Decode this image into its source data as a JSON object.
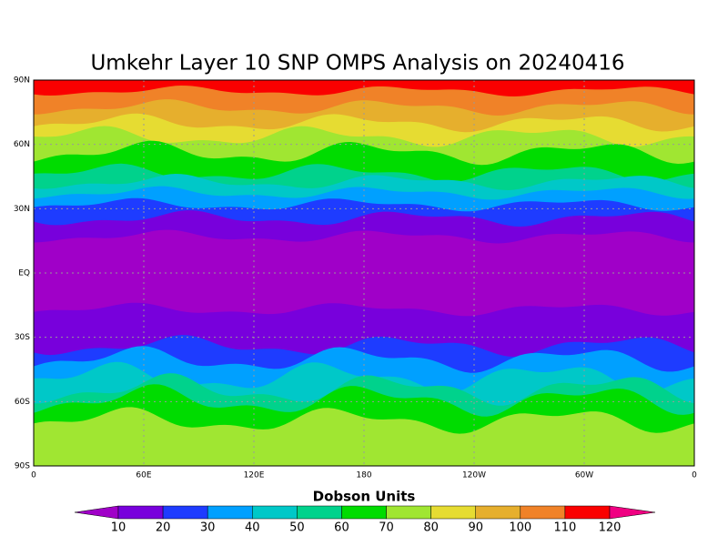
{
  "title": "Umkehr Layer 10 SNP OMPS Analysis on 20240416",
  "map": {
    "lat_labels": [
      "90N",
      "60N",
      "30N",
      "EQ",
      "30S",
      "60S",
      "90S"
    ],
    "lon_labels": [
      "0",
      "60E",
      "120E",
      "180",
      "120W",
      "60W",
      "0"
    ]
  },
  "colorbar": {
    "label": "Dobson Units",
    "ticks": [
      10,
      20,
      30,
      40,
      50,
      60,
      70,
      80,
      90,
      100,
      110,
      120
    ],
    "colors": [
      "#a000c8",
      "#7800dc",
      "#1e3cff",
      "#00a0ff",
      "#00c8c8",
      "#00d28c",
      "#00dc00",
      "#a0e632",
      "#e6dc32",
      "#e6af2d",
      "#f08228",
      "#fa0000",
      "#f00082"
    ]
  }
}
